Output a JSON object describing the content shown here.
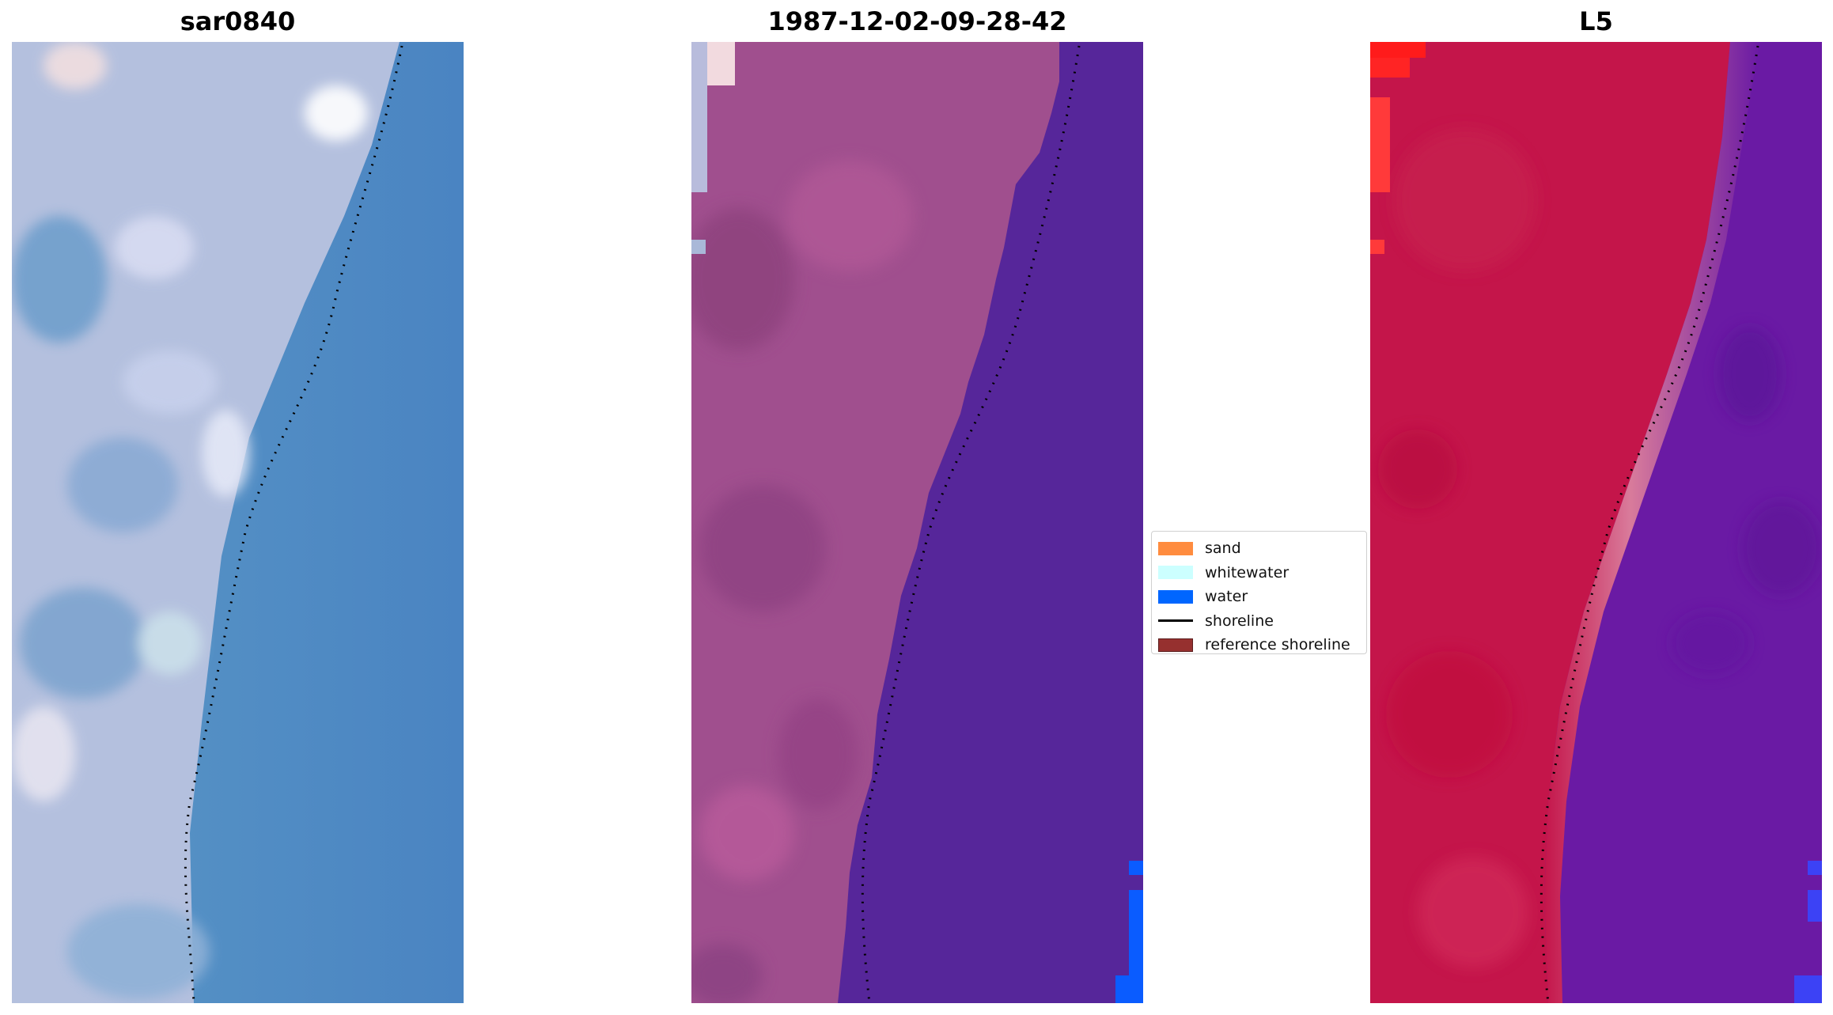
{
  "panels": {
    "left": {
      "title": "sar0840"
    },
    "middle": {
      "title": "1987-12-02-09-28-42"
    },
    "right": {
      "title": "L5"
    }
  },
  "legend": {
    "items": [
      {
        "label": "sand",
        "color": "#ff8c3f",
        "kind": "patch"
      },
      {
        "label": "whitewater",
        "color": "#ccffff",
        "kind": "patch"
      },
      {
        "label": "water",
        "color": "#0066ff",
        "kind": "patch"
      },
      {
        "label": "shoreline",
        "color": "#000000",
        "kind": "line"
      },
      {
        "label": "reference shoreline",
        "color": "#96302f",
        "kind": "patch"
      }
    ]
  },
  "colors": {
    "rgb_water": "#4b8fc8",
    "rgb_land": "#b7c2e0",
    "classified_land": "#a04f8e",
    "classified_water": "#56269a",
    "classified_water_pixels": "#0a5cff",
    "index_land": "#c4154a",
    "index_water": "#6a1aa4",
    "index_transition": "#d97b9b"
  }
}
